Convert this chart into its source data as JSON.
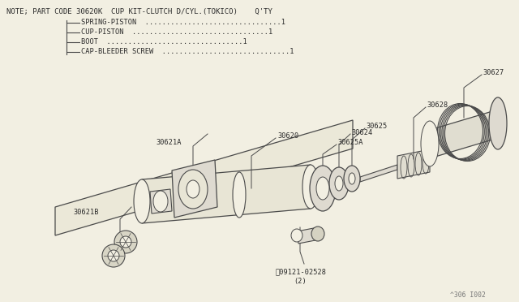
{
  "bg_color": "#f2efe2",
  "line_color": "#4a4a4a",
  "text_color": "#2a2a2a",
  "title_line": "NOTE; PART CODE 30620K  CUP KIT-CLUTCH D/CYL.(TOKICO)    Q'TY",
  "legend_items": [
    "SPRING-PISTON",
    "CUP-PISTON",
    "BOOT",
    "CAP-BLEEDER SCREW"
  ],
  "watermark": "^306 I002",
  "font_size_title": 6.5,
  "font_size_legend": 6.2,
  "font_size_parts": 6.2
}
